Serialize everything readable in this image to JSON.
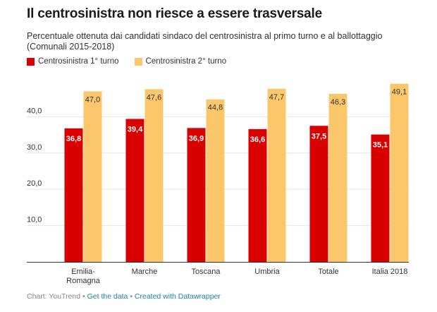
{
  "header": {
    "title": "Il centrosinistra non riesce a essere trasversale",
    "subtitle_line1": "Percentuale ottenuta dai candidati sindaco del centrosinistra al primo turno e al ballottaggio",
    "subtitle_line2": "(Comunali 2015-2018)"
  },
  "footer": {
    "source": "Chart: YouTrend",
    "sep1": " • ",
    "get_data": "Get the data",
    "sep2": " • ",
    "created_with": "Created with Datawrapper"
  },
  "colors": {
    "series1": "#d90000",
    "series2": "#fcc66b",
    "grid": "#e6e6e6",
    "axis": "#333333"
  },
  "chart_data": {
    "type": "bar",
    "title": "Il centrosinistra non riesce a essere trasversale",
    "subtitle": "Percentuale ottenuta dai candidati sindaco del centrosinistra al primo turno e al ballottaggio (Comunali 2015-2018)",
    "categories": [
      [
        "Emilia-",
        "Romagna"
      ],
      [
        "Marche"
      ],
      [
        "Toscana"
      ],
      [
        "Umbria"
      ],
      [
        "Totale"
      ],
      [
        "Italia 2018"
      ]
    ],
    "series": [
      {
        "name": "Centrosinistra 1° turno",
        "values": [
          36.8,
          39.4,
          36.9,
          36.6,
          37.5,
          35.1
        ],
        "labels": [
          "36,8",
          "39,4",
          "36,9",
          "36,6",
          "37,5",
          "35,1"
        ]
      },
      {
        "name": "Centrosinistra 2° turno",
        "values": [
          47.0,
          47.6,
          44.8,
          47.7,
          46.3,
          49.1
        ],
        "labels": [
          "47,0",
          "47,6",
          "44,8",
          "47,7",
          "46,3",
          "49,1"
        ]
      }
    ],
    "yticks": [
      10,
      20,
      30,
      40
    ],
    "ytick_labels": [
      "10,0",
      "20,0",
      "30,0",
      "40,0"
    ],
    "ylim": [
      0,
      50
    ],
    "grid": true,
    "legend": "top-left"
  }
}
